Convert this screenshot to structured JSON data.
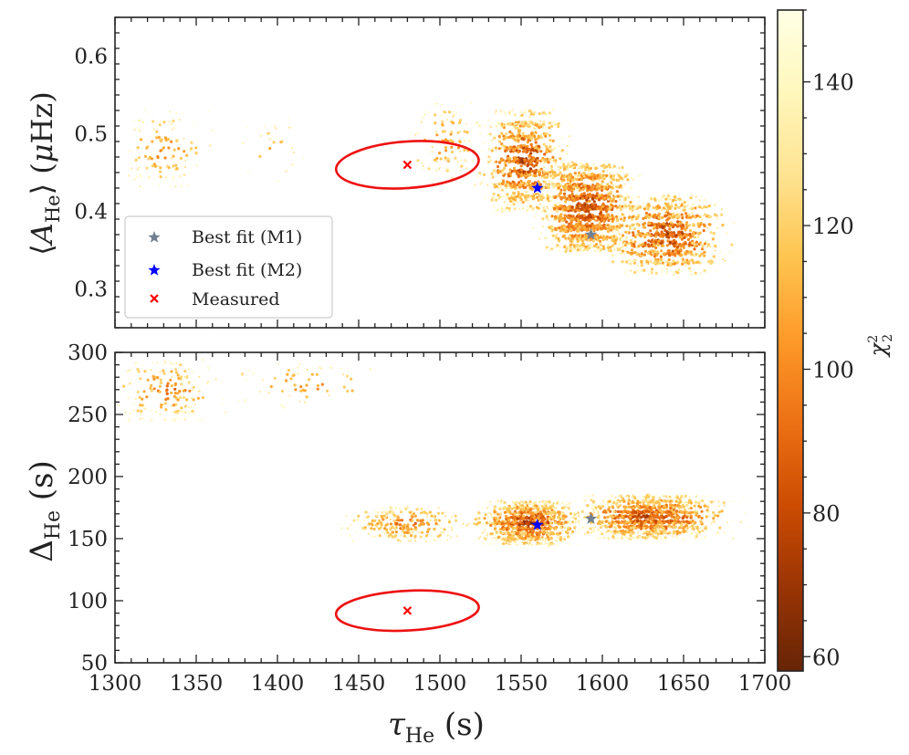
{
  "chart_data": [
    {
      "type": "scatter",
      "panel": "top",
      "xlabel": "τ_He (s)",
      "ylabel": "⟨A_He⟩ (μHz)",
      "ylabel_parts": {
        "open": "⟨",
        "var": "A",
        "sub": "He",
        "close": "⟩ (",
        "mu": "μ",
        "unit": "Hz)"
      },
      "xlim": [
        1300,
        1700
      ],
      "ylim": [
        0.25,
        0.65
      ],
      "yticks": [
        0.3,
        0.4,
        0.5,
        0.6
      ],
      "ytick_labels": [
        "0.3",
        "0.4",
        "0.5",
        "0.6"
      ],
      "grid": false,
      "point_clusters": [
        {
          "x": [
            1300,
            1360
          ],
          "y": [
            0.43,
            0.53
          ],
          "color_range": [
            90,
            150
          ],
          "n": 120
        },
        {
          "x": [
            1375,
            1420
          ],
          "y": [
            0.44,
            0.52
          ],
          "color_range": [
            100,
            150
          ],
          "n": 25
        },
        {
          "x": [
            1480,
            1530
          ],
          "y": [
            0.44,
            0.54
          ],
          "color_range": [
            90,
            150
          ],
          "n": 120
        },
        {
          "x": [
            1525,
            1580
          ],
          "y": [
            0.4,
            0.53
          ],
          "color_range": [
            60,
            150
          ],
          "n": 900
        },
        {
          "x": [
            1560,
            1620
          ],
          "y": [
            0.35,
            0.46
          ],
          "color_range": [
            60,
            140
          ],
          "n": 1300
        },
        {
          "x": [
            1600,
            1680
          ],
          "y": [
            0.32,
            0.42
          ],
          "color_range": [
            60,
            150
          ],
          "n": 900
        }
      ],
      "best_fit_m1": {
        "x": 1593,
        "y": 0.37,
        "label": "Best fit (M1)",
        "color": "#708090"
      },
      "best_fit_m2": {
        "x": 1560,
        "y": 0.43,
        "label": "Best fit (M2)",
        "color": "#0000ff"
      },
      "measured": {
        "x": 1480,
        "y": 0.46,
        "label": "Measured",
        "color": "#ff0000",
        "ellipse": {
          "center": [
            1480,
            0.46
          ],
          "half_width": 44,
          "half_height": 0.03,
          "angle_deg": -4
        }
      },
      "legend": [
        "Best fit (M1)",
        "Best fit (M2)",
        "Measured"
      ],
      "legend_position": "lower-left"
    },
    {
      "type": "scatter",
      "panel": "bottom",
      "xlabel": "τ_He (s)",
      "xlabel_parts": {
        "var": "τ",
        "sub": "He",
        "unit": " (s)"
      },
      "ylabel": "Δ_He (s)",
      "ylabel_parts": {
        "var": "Δ",
        "sub": "He",
        "unit": " (s)"
      },
      "xlim": [
        1300,
        1700
      ],
      "ylim": [
        50,
        300
      ],
      "xticks": [
        1300,
        1350,
        1400,
        1450,
        1500,
        1550,
        1600,
        1650,
        1700
      ],
      "xtick_labels": [
        "1300",
        "1350",
        "1400",
        "1450",
        "1500",
        "1550",
        "1600",
        "1650",
        "1700"
      ],
      "yticks": [
        50,
        100,
        150,
        200,
        250,
        300
      ],
      "ytick_labels": [
        "50",
        "100",
        "150",
        "200",
        "250",
        "300"
      ],
      "grid": false,
      "point_clusters": [
        {
          "x": [
            1300,
            1365
          ],
          "y": [
            245,
            292
          ],
          "color_range": [
            80,
            150
          ],
          "n": 180
        },
        {
          "x": [
            1365,
            1470
          ],
          "y": [
            255,
            292
          ],
          "color_range": [
            90,
            150
          ],
          "n": 60
        },
        {
          "x": [
            1440,
            1520
          ],
          "y": [
            148,
            175
          ],
          "color_range": [
            80,
            150
          ],
          "n": 250
        },
        {
          "x": [
            1520,
            1590
          ],
          "y": [
            145,
            180
          ],
          "color_range": [
            60,
            150
          ],
          "n": 1000
        },
        {
          "x": [
            1580,
            1680
          ],
          "y": [
            150,
            185
          ],
          "color_range": [
            60,
            150
          ],
          "n": 1100
        }
      ],
      "best_fit_m1": {
        "x": 1593,
        "y": 166,
        "color": "#708090"
      },
      "best_fit_m2": {
        "x": 1560,
        "y": 161,
        "color": "#0000ff"
      },
      "measured": {
        "x": 1480,
        "y": 92,
        "color": "#ff0000",
        "ellipse": {
          "center": [
            1480,
            92
          ],
          "half_width": 44,
          "half_height": 16,
          "angle_deg": -3
        }
      }
    }
  ],
  "colorbar": {
    "label": "χ²₂",
    "label_parts": {
      "var": "χ",
      "sup": "2",
      "sub": "2"
    },
    "range": [
      58,
      150
    ],
    "ticks": [
      60,
      80,
      100,
      120,
      140
    ],
    "tick_labels": [
      "60",
      "80",
      "100",
      "120",
      "140"
    ],
    "colormap": "YlOrBr_r",
    "stops": [
      "#662506",
      "#993404",
      "#cc4c02",
      "#ec7014",
      "#fe9929",
      "#fec44f",
      "#fee391",
      "#fff7bc",
      "#ffffe5"
    ]
  }
}
